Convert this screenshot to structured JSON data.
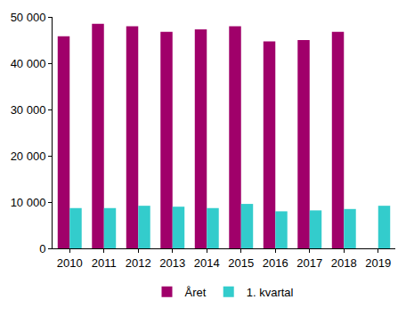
{
  "chart_data": {
    "type": "bar",
    "categories": [
      "2010",
      "2011",
      "2012",
      "2013",
      "2014",
      "2015",
      "2016",
      "2017",
      "2018",
      "2019"
    ],
    "series": [
      {
        "name": "Året",
        "color": "#a0006a",
        "values": [
          45800,
          48500,
          48000,
          46800,
          47300,
          48000,
          44700,
          45000,
          46800,
          null
        ]
      },
      {
        "name": "1. kvartal",
        "color": "#33cccc",
        "values": [
          8700,
          8700,
          9200,
          9000,
          8700,
          9600,
          8000,
          8200,
          8500,
          9200
        ]
      }
    ],
    "ylim": [
      0,
      50000
    ],
    "yticks": [
      0,
      {
        "value": 10000,
        "label": "10 000"
      },
      {
        "value": 20000,
        "label": "20 000"
      },
      {
        "value": 30000,
        "label": "30 000"
      },
      {
        "value": 40000,
        "label": "40 000"
      },
      {
        "value": 50000,
        "label": "50 000"
      }
    ],
    "grid": false,
    "legend": "bottom"
  }
}
